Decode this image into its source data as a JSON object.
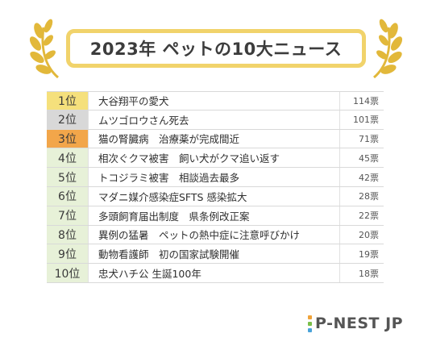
{
  "header": {
    "title": "2023年 ペットの10大ニュース"
  },
  "colors": {
    "gold": "#f5e07c",
    "silver": "#d8d8d8",
    "bronze": "#f2a64a",
    "green_tint": "#e7f1d8",
    "title_border": "#f1d36b",
    "laurel": "#e2b83a"
  },
  "ranking": [
    {
      "rank": "1位",
      "news": "大谷翔平の愛犬",
      "votes": "114票",
      "tier": "gold"
    },
    {
      "rank": "2位",
      "news": "ムツゴロウさん死去",
      "votes": "101票",
      "tier": "silver"
    },
    {
      "rank": "3位",
      "news": "猫の腎臓病　治療薬が完成間近",
      "votes": "71票",
      "tier": "bronze"
    },
    {
      "rank": "4位",
      "news": "相次ぐクマ被害　飼い犬がクマ追い返す",
      "votes": "45票",
      "tier": "green"
    },
    {
      "rank": "5位",
      "news": "トコジラミ被害　相談過去最多",
      "votes": "42票",
      "tier": "green"
    },
    {
      "rank": "6位",
      "news": "マダニ媒介感染症SFTS 感染拡大",
      "votes": "28票",
      "tier": "green"
    },
    {
      "rank": "7位",
      "news": "多頭飼育届出制度　県条例改正案",
      "votes": "22票",
      "tier": "green"
    },
    {
      "rank": "8位",
      "news": "異例の猛暑　ペットの熱中症に注意呼びかけ",
      "votes": "20票",
      "tier": "green"
    },
    {
      "rank": "9位",
      "news": "動物看護師　初の国家試験開催",
      "votes": "19票",
      "tier": "green"
    },
    {
      "rank": "10位",
      "news": "忠犬ハチ公 生誕100年",
      "votes": "18票",
      "tier": "green"
    }
  ],
  "footer": {
    "logo_text": "P-NEST JP"
  },
  "icons": {
    "laurel_left": "laurel-branch-icon",
    "laurel_right": "laurel-branch-icon"
  }
}
